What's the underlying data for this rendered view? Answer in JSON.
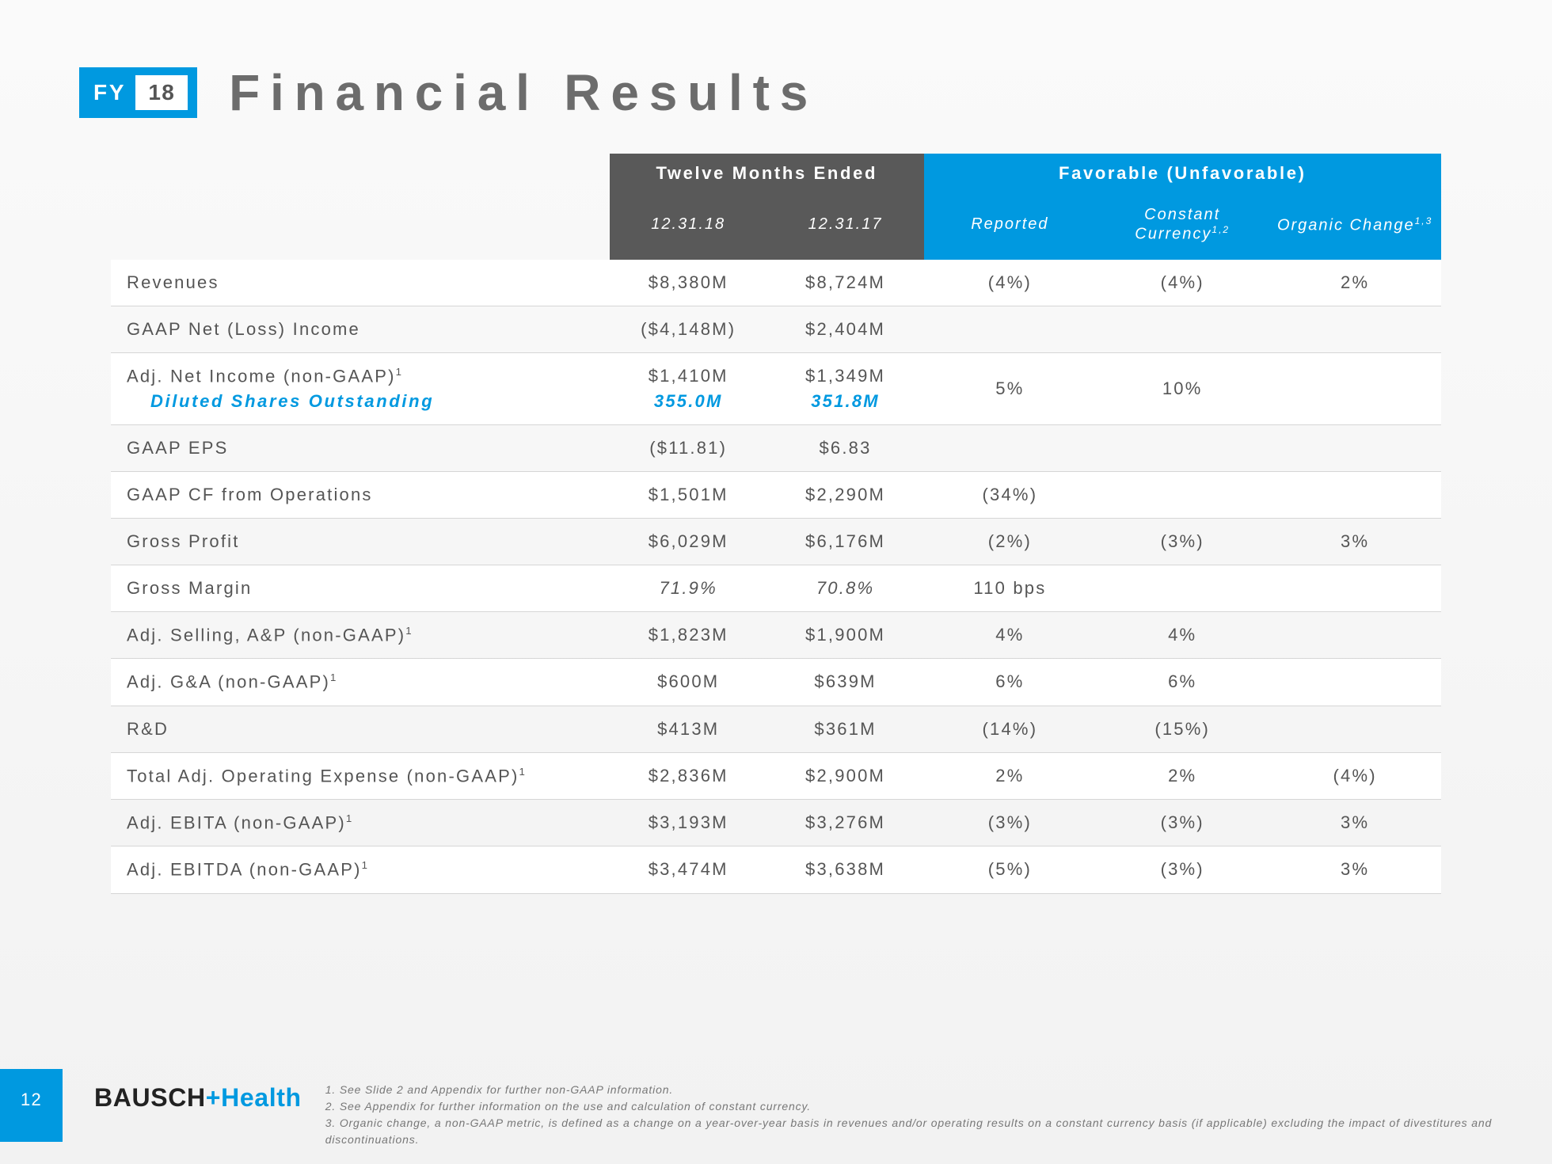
{
  "header": {
    "fy_label": "FY",
    "fy_year": "18",
    "title": "Financial Results"
  },
  "table": {
    "header_months": "Twelve Months Ended",
    "header_fav": "Favorable (Unfavorable)",
    "col_date_cur": "12.31.18",
    "col_date_prev": "12.31.17",
    "col_reported": "Reported",
    "col_cc": "Constant Currency",
    "col_cc_sup": "1,2",
    "col_org": "Organic Change",
    "col_org_sup": "1,3",
    "rows": [
      {
        "label": "Revenues",
        "v1": "$8,380M",
        "v2": "$8,724M",
        "r": "(4%)",
        "cc": "(4%)",
        "org": "2%"
      },
      {
        "label": "GAAP Net (Loss) Income",
        "v1": "($4,148M)",
        "v2": "$2,404M",
        "r": "",
        "cc": "",
        "org": ""
      },
      {
        "label": "Adj. Net Income (non-GAAP)",
        "sup": "1",
        "sub_label": "Diluted Shares Outstanding",
        "v1": "$1,410M",
        "v1_sub": "355.0M",
        "v2": "$1,349M",
        "v2_sub": "351.8M",
        "r": "5%",
        "cc": "10%",
        "org": ""
      },
      {
        "label": "GAAP EPS",
        "v1": "($11.81)",
        "v2": "$6.83",
        "r": "",
        "cc": "",
        "org": ""
      },
      {
        "label": "GAAP CF from Operations",
        "v1": "$1,501M",
        "v2": "$2,290M",
        "r": "(34%)",
        "cc": "",
        "org": ""
      },
      {
        "label": "Gross Profit",
        "v1": "$6,029M",
        "v2": "$6,176M",
        "r": "(2%)",
        "cc": "(3%)",
        "org": "3%"
      },
      {
        "label": "Gross Margin",
        "v1": "71.9%",
        "v2": "70.8%",
        "r": "110 bps",
        "cc": "",
        "org": "",
        "italic": true
      },
      {
        "label": "Adj. Selling, A&P (non-GAAP)",
        "sup": "1",
        "v1": "$1,823M",
        "v2": "$1,900M",
        "r": "4%",
        "cc": "4%",
        "org": ""
      },
      {
        "label": "Adj. G&A (non-GAAP)",
        "sup": "1",
        "v1": "$600M",
        "v2": "$639M",
        "r": "6%",
        "cc": "6%",
        "org": ""
      },
      {
        "label": "R&D",
        "v1": "$413M",
        "v2": "$361M",
        "r": "(14%)",
        "cc": "(15%)",
        "org": ""
      },
      {
        "label": "Total Adj. Operating Expense (non-GAAP)",
        "sup": "1",
        "v1": "$2,836M",
        "v2": "$2,900M",
        "r": "2%",
        "cc": "2%",
        "org": "(4%)"
      },
      {
        "label": "Adj. EBITA (non-GAAP)",
        "sup": "1",
        "v1": "$3,193M",
        "v2": "$3,276M",
        "r": "(3%)",
        "cc": "(3%)",
        "org": "3%"
      },
      {
        "label": "Adj. EBITDA (non-GAAP)",
        "sup": "1",
        "v1": "$3,474M",
        "v2": "$3,638M",
        "r": "(5%)",
        "cc": "(3%)",
        "org": "3%"
      }
    ]
  },
  "footer": {
    "page": "12",
    "logo_brand": "BAUSCH",
    "logo_plus": "+",
    "logo_suffix": "Health",
    "notes": [
      "1. See Slide 2 and Appendix for further non-GAAP information.",
      "2. See Appendix for further information on the use and calculation of constant currency.",
      "3. Organic change, a non-GAAP metric, is defined as a change on a year-over-year basis in revenues and/or operating results on a constant currency basis (if applicable) excluding the impact of divestitures and discontinuations."
    ]
  },
  "colors": {
    "accent": "#0099e0",
    "header_dark": "#595959",
    "text": "#555555",
    "border": "#d6d6d6"
  }
}
